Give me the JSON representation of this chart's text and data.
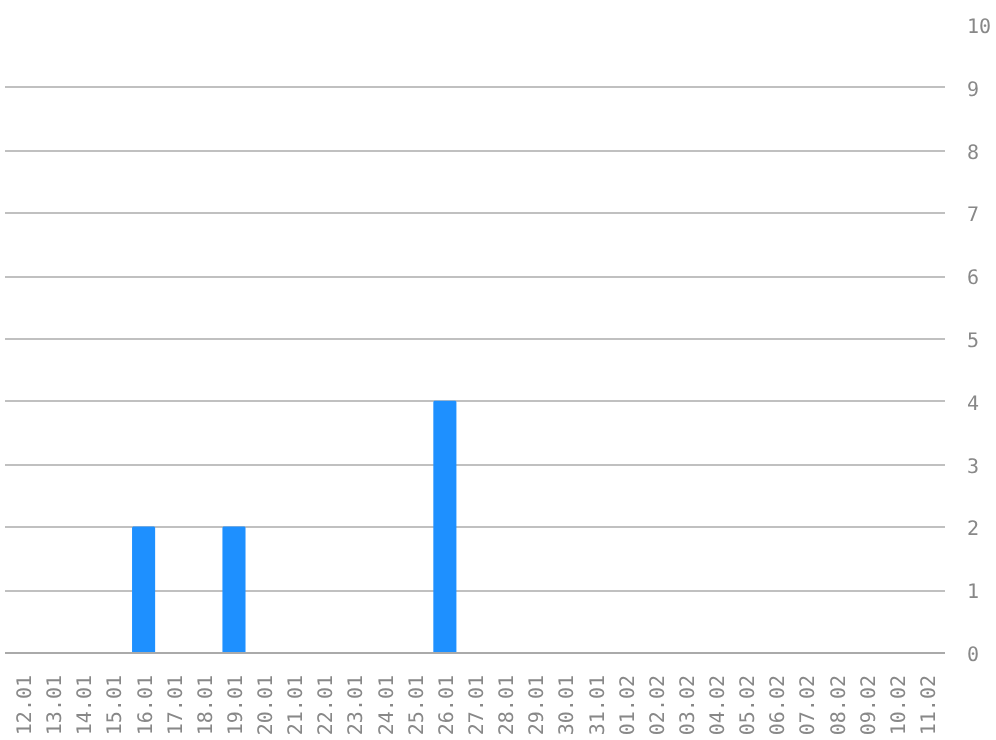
{
  "chart_data": {
    "type": "bar",
    "categories": [
      "12.01",
      "13.01",
      "14.01",
      "15.01",
      "16.01",
      "17.01",
      "18.01",
      "19.01",
      "20.01",
      "21.01",
      "22.01",
      "23.01",
      "24.01",
      "25.01",
      "26.01",
      "27.01",
      "28.01",
      "29.01",
      "30.01",
      "31.01",
      "01.02",
      "02.02",
      "03.02",
      "04.02",
      "05.02",
      "06.02",
      "07.02",
      "08.02",
      "09.02",
      "10.02",
      "11.02"
    ],
    "values": [
      0,
      0,
      0,
      0,
      2,
      0,
      0,
      2,
      0,
      0,
      0,
      0,
      0,
      0,
      4,
      0,
      0,
      0,
      0,
      0,
      0,
      0,
      0,
      0,
      0,
      0,
      0,
      0,
      0,
      0,
      0
    ],
    "color": "#1e90ff",
    "ylim": [
      0,
      10
    ],
    "yticks": [
      0,
      1,
      2,
      3,
      4,
      5,
      6,
      7,
      8,
      9,
      10
    ],
    "grid": "y"
  }
}
